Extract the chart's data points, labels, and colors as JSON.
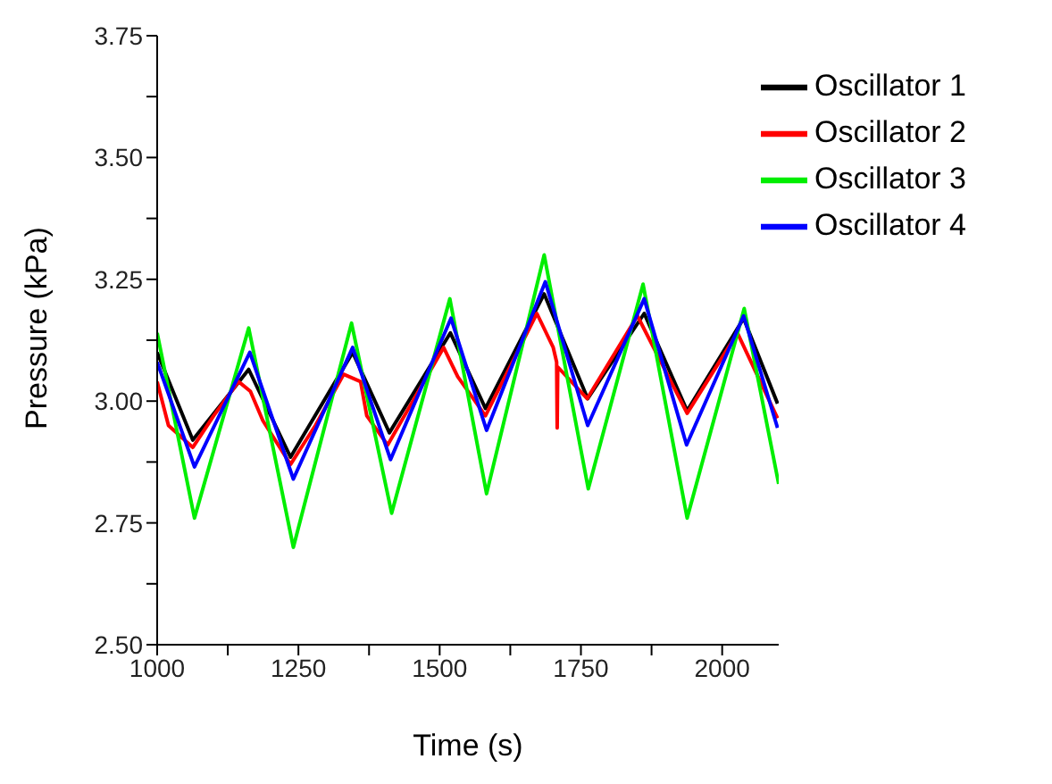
{
  "chart_data": {
    "type": "line",
    "xlabel": "Time (s)",
    "ylabel": "Pressure (kPa)",
    "xlim": [
      1000,
      2100
    ],
    "ylim": [
      2.5,
      3.75
    ],
    "xticks": [
      1000,
      {
        "value": 1125,
        "label": null
      },
      1250,
      {
        "value": 1375,
        "label": null
      },
      1500,
      {
        "value": 1625,
        "label": null
      },
      1750,
      {
        "value": 1875,
        "label": null
      },
      2000
    ],
    "yticks": [
      {
        "value": 2.5,
        "label": "2.50"
      },
      {
        "value": 2.625,
        "label": null
      },
      {
        "value": 2.75,
        "label": "2.75"
      },
      {
        "value": 2.875,
        "label": null
      },
      {
        "value": 3,
        "label": "3.00"
      },
      {
        "value": 3.125,
        "label": null
      },
      {
        "value": 3.25,
        "label": "3.25"
      },
      {
        "value": 3.375,
        "label": null
      },
      {
        "value": 3.5,
        "label": "3.50"
      },
      {
        "value": 3.625,
        "label": null
      },
      {
        "value": 3.75,
        "label": "3.75"
      }
    ],
    "grid": false,
    "legend": "top right",
    "marker": "none",
    "line_style": "solid",
    "series": [
      {
        "name": "Oscillator 1",
        "color": "#000000",
        "x": [
          1000,
          1063,
          1162,
          1236,
          1346,
          1411,
          1519,
          1581,
          1685,
          1762,
          1862,
          1938,
          2038,
          2098
        ],
        "values": [
          3.1,
          2.92,
          3.065,
          2.885,
          3.1,
          2.935,
          3.14,
          2.985,
          3.22,
          3.005,
          3.18,
          2.98,
          3.17,
          2.995
        ]
      },
      {
        "name": "Oscillator 2",
        "color": "#ff0000",
        "x": [
          1000,
          1020,
          1063,
          1100,
          1144,
          1165,
          1187,
          1236,
          1280,
          1330,
          1360,
          1371,
          1408,
          1507,
          1532,
          1581,
          1672,
          1701,
          1707,
          1708,
          1709,
          1761,
          1850,
          1938,
          2027,
          2098
        ],
        "values": [
          3.04,
          2.95,
          2.905,
          2.97,
          3.04,
          3.02,
          2.96,
          2.87,
          2.95,
          3.055,
          3.04,
          2.97,
          2.91,
          3.11,
          3.05,
          2.97,
          3.18,
          3.11,
          3.08,
          2.945,
          3.07,
          3.005,
          3.175,
          2.975,
          3.14,
          2.965
        ]
      },
      {
        "name": "Oscillator 3",
        "color": "#00ee00",
        "x": [
          1000,
          1066,
          1162,
          1241,
          1344,
          1415,
          1518,
          1583,
          1685,
          1763,
          1860,
          1938,
          2039,
          2100
        ],
        "values": [
          3.14,
          2.76,
          3.15,
          2.7,
          3.16,
          2.77,
          3.21,
          2.81,
          3.3,
          2.82,
          3.24,
          2.76,
          3.19,
          2.83
        ]
      },
      {
        "name": "Oscillator 4",
        "color": "#0000ff",
        "x": [
          1000,
          1066,
          1164,
          1241,
          1346,
          1413,
          1520,
          1583,
          1687,
          1762,
          1862,
          1937,
          2038,
          2098
        ],
        "values": [
          3.08,
          2.865,
          3.1,
          2.84,
          3.11,
          2.88,
          3.17,
          2.94,
          3.245,
          2.95,
          3.21,
          2.91,
          3.175,
          2.945
        ]
      }
    ]
  }
}
